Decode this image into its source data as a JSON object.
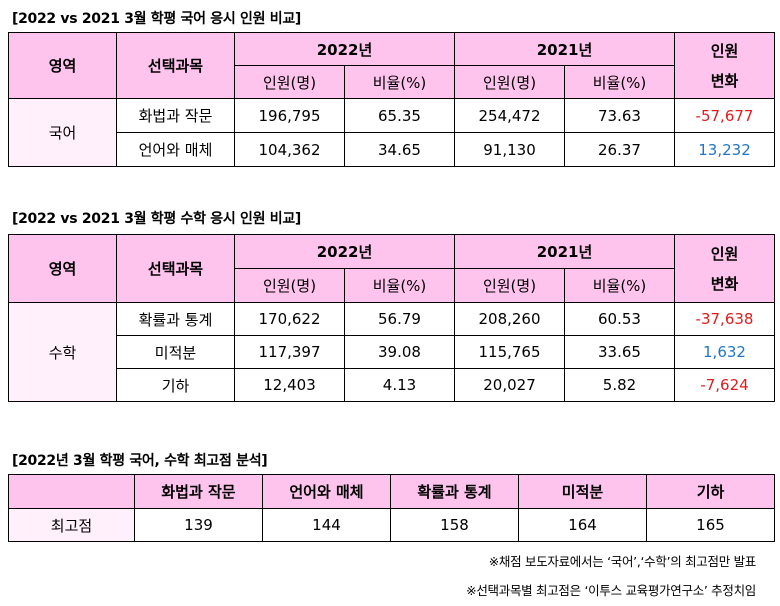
{
  "korean": {
    "title": "[2022 vs 2021 3월 학평 국어 응시 인원 비교]",
    "headers": {
      "area": "영역",
      "subject": "선택과목",
      "y2022": "2022년",
      "y2021": "2021년",
      "change": "인원\n변화",
      "count": "인원(명)",
      "ratio": "비율(%)"
    },
    "area": "국어",
    "rows": [
      {
        "subject": "화법과 작문",
        "c2022": "196,795",
        "r2022": "65.35",
        "c2021": "254,472",
        "r2021": "73.63",
        "change": "-57,677"
      },
      {
        "subject": "언어와 매체",
        "c2022": "104,362",
        "r2022": "34.65",
        "c2021": "91,130",
        "r2021": "26.37",
        "change": "13,232"
      }
    ]
  },
  "math": {
    "title": "[2022 vs 2021 3월 학평 수학 응시 인원 비교]",
    "headers": {
      "area": "영역",
      "subject": "선택과목",
      "y2022": "2022년",
      "y2021": "2021년",
      "change": "인원\n변화",
      "count": "인원(명)",
      "ratio": "비율(%)"
    },
    "area": "수학",
    "rows": [
      {
        "subject": "확률과 통계",
        "c2022": "170,622",
        "r2022": "56.79",
        "c2021": "208,260",
        "r2021": "60.53",
        "change": "-37,638"
      },
      {
        "subject": "미적분",
        "c2022": "117,397",
        "r2022": "39.08",
        "c2021": "115,765",
        "r2021": "33.65",
        "change": "1,632"
      },
      {
        "subject": "기하",
        "c2022": "12,403",
        "r2022": "4.13",
        "c2021": "20,027",
        "r2021": "5.82",
        "change": "-7,624"
      }
    ]
  },
  "top": {
    "title": "[2022년 3월 학평 국어, 수학 최고점 분석]",
    "headers": [
      "화법과 작문",
      "언어와 매체",
      "확률과 통계",
      "미적분",
      "기하"
    ],
    "row_label": "최고점",
    "values": [
      "139",
      "144",
      "158",
      "164",
      "165"
    ]
  },
  "notes": [
    "※채점 보도자료에서는 ‘국어’,‘수학’의 최고점만 발표",
    "※선택과목별 최고점은 ‘이투스 교육평가연구소’ 추정치임"
  ],
  "colors": {
    "header": "#ffc4ee",
    "area": "#fff0fb",
    "negative": "#e01b1b",
    "positive": "#1f76c8"
  }
}
